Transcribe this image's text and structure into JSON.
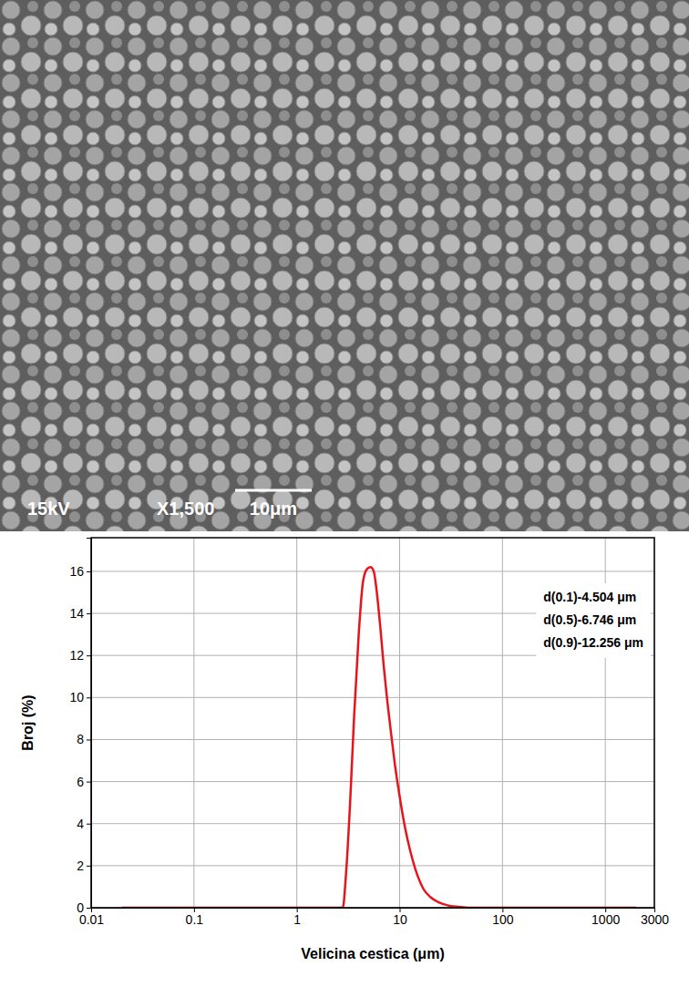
{
  "micrograph": {
    "voltage": "15kV",
    "magnification": "X1,500",
    "scale_bar": "10μm"
  },
  "chart_data": {
    "type": "line",
    "x_label": "Velicina cestica (μm)",
    "y_label": "Broj (%)",
    "annotations": [
      "d(0.1)-4.504 μm",
      "d(0.5)-6.746 μm",
      "d(0.9)-12.256 μm"
    ],
    "x": [
      0.02,
      0.1,
      1,
      2.8,
      3.0,
      3.3,
      3.6,
      4.0,
      4.4,
      4.8,
      5.2,
      5.6,
      6.0,
      6.5,
      7.0,
      7.6,
      8.3,
      9.0,
      10,
      11,
      12,
      13.5,
      15,
      17,
      20,
      24,
      30,
      40,
      50,
      100,
      1000,
      2000
    ],
    "values": [
      0,
      0,
      0,
      0,
      1.5,
      5,
      9,
      13,
      15.5,
      16.1,
      16.2,
      16.0,
      15.0,
      13.3,
      11.5,
      9.8,
      8.2,
      6.8,
      5.3,
      4.1,
      3.2,
      2.2,
      1.5,
      0.9,
      0.5,
      0.25,
      0.1,
      0.03,
      0,
      0,
      0,
      0
    ],
    "color": "#e8141b",
    "log": "x",
    "grid": true,
    "xlim": [
      0.01,
      3000
    ],
    "xticks": [
      0.01,
      0.1,
      1,
      10,
      100,
      1000,
      3000
    ],
    "ylim": [
      0,
      17.6
    ],
    "yticks": [
      0,
      2,
      4,
      6,
      8,
      10,
      12,
      14,
      16
    ]
  }
}
